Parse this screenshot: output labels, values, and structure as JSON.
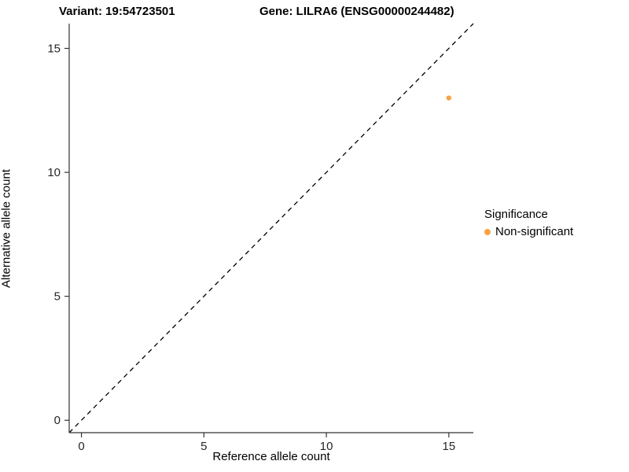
{
  "chart_data": {
    "type": "scatter",
    "title_left": "Variant: 19:54723501",
    "title_right": "Gene: LILRA6 (ENSG00000244482)",
    "xlabel": "Reference allele count",
    "ylabel": "Alternative allele count",
    "xlim": [
      -0.5,
      16
    ],
    "ylim": [
      -0.5,
      16
    ],
    "x_ticks": [
      0,
      5,
      10,
      15
    ],
    "y_ticks": [
      0,
      5,
      10,
      15
    ],
    "grid": false,
    "points": [
      {
        "x": 15,
        "y": 13,
        "significance": "Non-significant",
        "color": "#F9A242"
      }
    ],
    "identity_line": {
      "style": "dashed",
      "slope": 1,
      "intercept": 0,
      "color": "#000000"
    },
    "legend": {
      "title": "Significance",
      "position": "right",
      "entries": [
        {
          "label": "Non-significant",
          "color": "#F9A242"
        }
      ]
    },
    "colors": {
      "axis_line": "#333333",
      "tick_text": "#262626"
    }
  }
}
